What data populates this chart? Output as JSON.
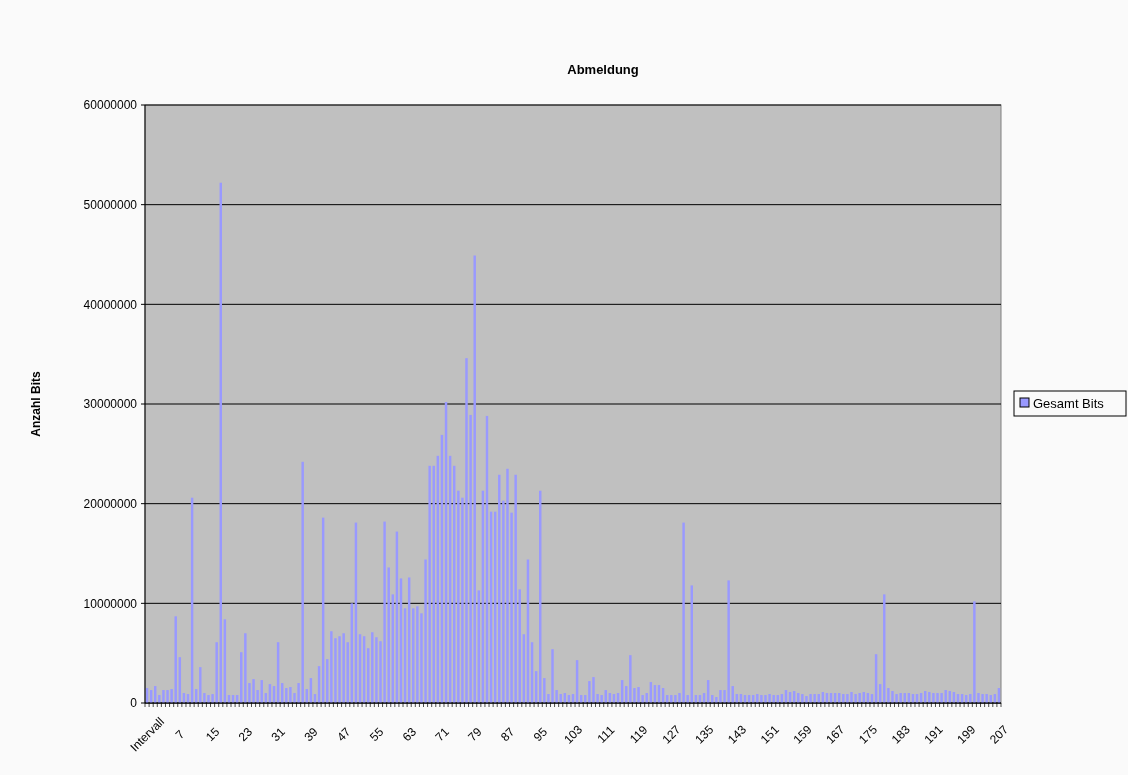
{
  "chart_data": {
    "type": "bar",
    "title": "Abmeldung",
    "ylabel": "Anzahl Bits",
    "categories": [
      "Intervall",
      null,
      null,
      null,
      null,
      null,
      null,
      null,
      "7",
      null,
      null,
      null,
      null,
      null,
      null,
      null,
      "15",
      null,
      null,
      null,
      null,
      null,
      null,
      null,
      "23",
      null,
      null,
      null,
      null,
      null,
      null,
      null,
      "31",
      null,
      null,
      null,
      null,
      null,
      null,
      null,
      "39",
      null,
      null,
      null,
      null,
      null,
      null,
      null,
      "47",
      null,
      null,
      null,
      null,
      null,
      null,
      null,
      "55",
      null,
      null,
      null,
      null,
      null,
      null,
      null,
      "63",
      null,
      null,
      null,
      null,
      null,
      null,
      null,
      "71",
      null,
      null,
      null,
      null,
      null,
      null,
      null,
      "79",
      null,
      null,
      null,
      null,
      null,
      null,
      null,
      "87",
      null,
      null,
      null,
      null,
      null,
      null,
      null,
      "95",
      null,
      null,
      null,
      null,
      null,
      null,
      null,
      "103",
      null,
      null,
      null,
      null,
      null,
      null,
      null,
      "111",
      null,
      null,
      null,
      null,
      null,
      null,
      null,
      "119",
      null,
      null,
      null,
      null,
      null,
      null,
      null,
      "127",
      null,
      null,
      null,
      null,
      null,
      null,
      null,
      "135",
      null,
      null,
      null,
      null,
      null,
      null,
      null,
      "143",
      null,
      null,
      null,
      null,
      null,
      null,
      null,
      "151",
      null,
      null,
      null,
      null,
      null,
      null,
      null,
      "159",
      null,
      null,
      null,
      null,
      null,
      null,
      null,
      "167",
      null,
      null,
      null,
      null,
      null,
      null,
      null,
      "175",
      null,
      null,
      null,
      null,
      null,
      null,
      null,
      "183",
      null,
      null,
      null,
      null,
      null,
      null,
      null,
      "191",
      null,
      null,
      null,
      null,
      null,
      null,
      null,
      "199",
      null,
      null,
      null,
      null,
      null,
      null,
      null,
      "207"
    ],
    "series": [
      {
        "name": "Gesamt Bits",
        "color": "#9999ff",
        "values": [
          1500000,
          1300000,
          1700000,
          800000,
          1300000,
          1300000,
          1400000,
          8700000,
          4600000,
          1000000,
          900000,
          20600000,
          1400000,
          3600000,
          1000000,
          800000,
          900000,
          6100000,
          52200000,
          8400000,
          800000,
          800000,
          800000,
          5100000,
          7000000,
          2000000,
          2400000,
          1300000,
          2300000,
          1000000,
          1900000,
          1700000,
          6100000,
          2000000,
          1500000,
          1600000,
          1000000,
          2000000,
          24200000,
          1400000,
          2500000,
          900000,
          3700000,
          18600000,
          4400000,
          7200000,
          6500000,
          6700000,
          7000000,
          6100000,
          10000000,
          18100000,
          6900000,
          6700000,
          5500000,
          7100000,
          6600000,
          6200000,
          18200000,
          13600000,
          10900000,
          17200000,
          12500000,
          9500000,
          12600000,
          9500000,
          9700000,
          9000000,
          14400000,
          23800000,
          23800000,
          24800000,
          26900000,
          30200000,
          24800000,
          23800000,
          21300000,
          20600000,
          34600000,
          28900000,
          44900000,
          11300000,
          21300000,
          28800000,
          19200000,
          19200000,
          22900000,
          20300000,
          23500000,
          19100000,
          22900000,
          11400000,
          6900000,
          14400000,
          6100000,
          3200000,
          21300000,
          2500000,
          900000,
          5400000,
          1300000,
          900000,
          1000000,
          800000,
          900000,
          4300000,
          800000,
          800000,
          2200000,
          2600000,
          900000,
          800000,
          1300000,
          1000000,
          900000,
          1000000,
          2300000,
          1700000,
          4800000,
          1500000,
          1600000,
          800000,
          1000000,
          2100000,
          1800000,
          1800000,
          1500000,
          800000,
          800000,
          800000,
          1000000,
          18100000,
          800000,
          11800000,
          800000,
          800000,
          1000000,
          2300000,
          800000,
          600000,
          1300000,
          1300000,
          12300000,
          1700000,
          900000,
          900000,
          800000,
          800000,
          800000,
          900000,
          800000,
          800000,
          900000,
          800000,
          800000,
          900000,
          1300000,
          1100000,
          1200000,
          1000000,
          900000,
          700000,
          900000,
          900000,
          900000,
          1100000,
          1000000,
          1000000,
          1000000,
          1000000,
          900000,
          900000,
          1100000,
          900000,
          1000000,
          1100000,
          1000000,
          900000,
          4900000,
          1900000,
          10900000,
          1500000,
          1200000,
          900000,
          1000000,
          1000000,
          1000000,
          900000,
          900000,
          1000000,
          1200000,
          1100000,
          1000000,
          1000000,
          1000000,
          1300000,
          1200000,
          1100000,
          900000,
          900000,
          800000,
          900000,
          10200000,
          1000000,
          900000,
          900000,
          800000,
          900000,
          1500000
        ]
      }
    ],
    "ylim": [
      0,
      60000000
    ],
    "yticks": [
      0,
      10000000,
      20000000,
      30000000,
      40000000,
      50000000,
      60000000
    ],
    "grid": "y",
    "legend": "right"
  }
}
